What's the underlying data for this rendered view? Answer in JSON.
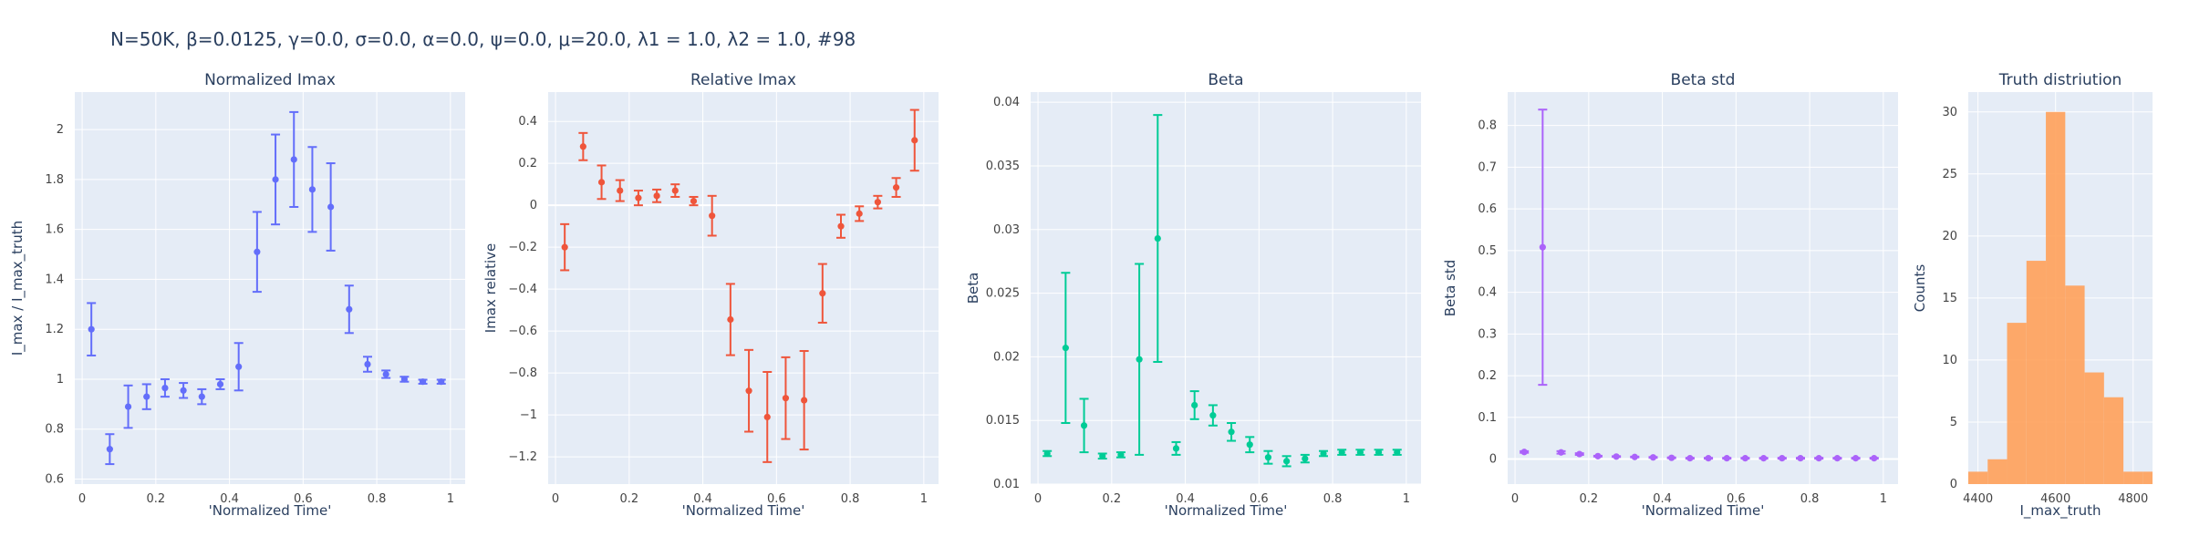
{
  "figure_title": "N=50K, β=0.0125, γ=0.0, σ=0.0,  α=0.0, ψ=0.0, μ=20.0, λ1 = 1.0, λ2 = 1.0, #98",
  "chart_data": [
    {
      "type": "scatter",
      "title": "Normalized Imax",
      "xlabel": "'Normalized Time'",
      "ylabel": "I_max / I_max_truth",
      "color": "#636efa",
      "xlim": [
        -0.02,
        1.04
      ],
      "ylim": [
        0.58,
        2.15
      ],
      "xticks": [
        0,
        0.2,
        0.4,
        0.6,
        0.8,
        1
      ],
      "xtick_labels": [
        "0",
        "0.2",
        "0.4",
        "0.6",
        "0.8",
        "1"
      ],
      "yticks": [
        0.6,
        0.8,
        1,
        1.2,
        1.4,
        1.6,
        1.8,
        2
      ],
      "ytick_labels": [
        "0.6",
        "0.8",
        "1",
        "1.2",
        "1.4",
        "1.6",
        "1.8",
        "2"
      ],
      "x": [
        0.025,
        0.075,
        0.125,
        0.175,
        0.225,
        0.275,
        0.325,
        0.375,
        0.425,
        0.475,
        0.525,
        0.575,
        0.625,
        0.675,
        0.725,
        0.775,
        0.825,
        0.875,
        0.925,
        0.975
      ],
      "y": [
        1.2,
        0.72,
        0.89,
        0.93,
        0.965,
        0.955,
        0.93,
        0.98,
        1.05,
        1.51,
        1.8,
        1.88,
        1.76,
        1.69,
        1.28,
        1.06,
        1.02,
        1.0,
        0.99,
        0.99
      ],
      "err": [
        0.105,
        0.06,
        0.085,
        0.05,
        0.035,
        0.03,
        0.03,
        0.02,
        0.095,
        0.16,
        0.18,
        0.19,
        0.17,
        0.175,
        0.095,
        0.03,
        0.015,
        0.01,
        0.008,
        0.008
      ]
    },
    {
      "type": "scatter",
      "title": "Relative Imax",
      "xlabel": "'Normalized Time'",
      "ylabel": "Imax relative",
      "color": "#ef553b",
      "xlim": [
        -0.02,
        1.04
      ],
      "ylim": [
        -1.33,
        0.54
      ],
      "xticks": [
        0,
        0.2,
        0.4,
        0.6,
        0.8,
        1
      ],
      "xtick_labels": [
        "0",
        "0.2",
        "0.4",
        "0.6",
        "0.8",
        "1"
      ],
      "yticks": [
        -1.2,
        -1,
        -0.8,
        -0.6,
        -0.4,
        -0.2,
        0,
        0.2,
        0.4
      ],
      "ytick_labels": [
        "−1.2",
        "−1",
        "−0.8",
        "−0.6",
        "−0.4",
        "−0.2",
        "0",
        "0.2",
        "0.4"
      ],
      "x": [
        0.025,
        0.075,
        0.125,
        0.175,
        0.225,
        0.275,
        0.325,
        0.375,
        0.425,
        0.475,
        0.525,
        0.575,
        0.625,
        0.675,
        0.725,
        0.775,
        0.825,
        0.875,
        0.925,
        0.975
      ],
      "y": [
        -0.2,
        0.28,
        0.11,
        0.07,
        0.035,
        0.045,
        0.07,
        0.02,
        -0.05,
        -0.545,
        -0.885,
        -1.01,
        -0.92,
        -0.93,
        -0.42,
        -0.1,
        -0.04,
        0.015,
        0.085,
        0.31
      ],
      "err": [
        0.11,
        0.065,
        0.08,
        0.05,
        0.035,
        0.03,
        0.03,
        0.02,
        0.095,
        0.17,
        0.195,
        0.215,
        0.195,
        0.235,
        0.14,
        0.055,
        0.035,
        0.03,
        0.045,
        0.145
      ]
    },
    {
      "type": "scatter",
      "title": "Beta",
      "xlabel": "'Normalized Time'",
      "ylabel": "Beta",
      "color": "#00cc96",
      "xlim": [
        -0.02,
        1.04
      ],
      "ylim": [
        0.01,
        0.0408
      ],
      "xticks": [
        0,
        0.2,
        0.4,
        0.6,
        0.8,
        1
      ],
      "xtick_labels": [
        "0",
        "0.2",
        "0.4",
        "0.6",
        "0.8",
        "1"
      ],
      "yticks": [
        0.01,
        0.015,
        0.02,
        0.025,
        0.03,
        0.035,
        0.04
      ],
      "ytick_labels": [
        "0.01",
        "0.015",
        "0.02",
        "0.025",
        "0.03",
        "0.035",
        "0.04"
      ],
      "x": [
        0.025,
        0.075,
        0.125,
        0.175,
        0.225,
        0.275,
        0.325,
        0.375,
        0.425,
        0.475,
        0.525,
        0.575,
        0.625,
        0.675,
        0.725,
        0.775,
        0.825,
        0.875,
        0.925,
        0.975
      ],
      "y": [
        0.0124,
        0.0207,
        0.0146,
        0.0122,
        0.0123,
        0.0198,
        0.0293,
        0.0128,
        0.0162,
        0.0154,
        0.0141,
        0.0131,
        0.0121,
        0.0118,
        0.012,
        0.0124,
        0.0125,
        0.0125,
        0.0125,
        0.0125
      ],
      "err": [
        0.0002,
        0.0059,
        0.0021,
        0.0002,
        0.0002,
        0.0075,
        0.0097,
        0.0005,
        0.0011,
        0.0008,
        0.0007,
        0.0006,
        0.0005,
        0.0004,
        0.0003,
        0.0002,
        0.0002,
        0.0002,
        0.0002,
        0.0002
      ]
    },
    {
      "type": "scatter",
      "title": "Beta std",
      "xlabel": "'Normalized Time'",
      "ylabel": "Beta std",
      "color": "#ab63fa",
      "xlim": [
        -0.02,
        1.04
      ],
      "ylim": [
        -0.06,
        0.88
      ],
      "xticks": [
        0,
        0.2,
        0.4,
        0.6,
        0.8,
        1
      ],
      "xtick_labels": [
        "0",
        "0.2",
        "0.4",
        "0.6",
        "0.8",
        "1"
      ],
      "yticks": [
        0,
        0.1,
        0.2,
        0.3,
        0.4,
        0.5,
        0.6,
        0.7,
        0.8
      ],
      "ytick_labels": [
        "0",
        "0.1",
        "0.2",
        "0.3",
        "0.4",
        "0.5",
        "0.6",
        "0.7",
        "0.8"
      ],
      "x": [
        0.025,
        0.075,
        0.125,
        0.175,
        0.225,
        0.275,
        0.325,
        0.375,
        0.425,
        0.475,
        0.525,
        0.575,
        0.625,
        0.675,
        0.725,
        0.775,
        0.825,
        0.875,
        0.925,
        0.975
      ],
      "y": [
        0.017,
        0.508,
        0.016,
        0.012,
        0.007,
        0.006,
        0.005,
        0.004,
        0.003,
        0.002,
        0.002,
        0.002,
        0.002,
        0.002,
        0.002,
        0.002,
        0.002,
        0.002,
        0.002,
        0.002
      ],
      "err": [
        0.002,
        0.33,
        0.003,
        0.002,
        0.001,
        0.001,
        0.001,
        0.001,
        0.001,
        0.001,
        0.001,
        0.001,
        0.001,
        0.001,
        0.001,
        0.001,
        0.001,
        0.001,
        0.001,
        0.001
      ]
    },
    {
      "type": "histogram",
      "title": "Truth distriution",
      "xlabel": "I_max_truth",
      "ylabel": "Counts",
      "color": "#ffa15a",
      "xlim": [
        4375,
        4850
      ],
      "ylim": [
        0,
        31.6
      ],
      "xticks": [
        4400,
        4600,
        4800
      ],
      "xtick_labels": [
        "4400",
        "4600",
        "4800"
      ],
      "yticks": [
        0,
        5,
        10,
        15,
        20,
        25,
        30
      ],
      "ytick_labels": [
        "0",
        "5",
        "10",
        "15",
        "20",
        "25",
        "30"
      ],
      "bins": [
        {
          "x0": 4375,
          "x1": 4425,
          "count": 1
        },
        {
          "x0": 4425,
          "x1": 4475,
          "count": 2
        },
        {
          "x0": 4475,
          "x1": 4525,
          "count": 13
        },
        {
          "x0": 4525,
          "x1": 4575,
          "count": 18
        },
        {
          "x0": 4575,
          "x1": 4625,
          "count": 30
        },
        {
          "x0": 4625,
          "x1": 4675,
          "count": 16
        },
        {
          "x0": 4675,
          "x1": 4725,
          "count": 9
        },
        {
          "x0": 4725,
          "x1": 4775,
          "count": 7
        },
        {
          "x0": 4775,
          "x1": 4825,
          "count": 1
        },
        {
          "x0": 4825,
          "x1": 4875,
          "count": 1
        }
      ]
    }
  ]
}
